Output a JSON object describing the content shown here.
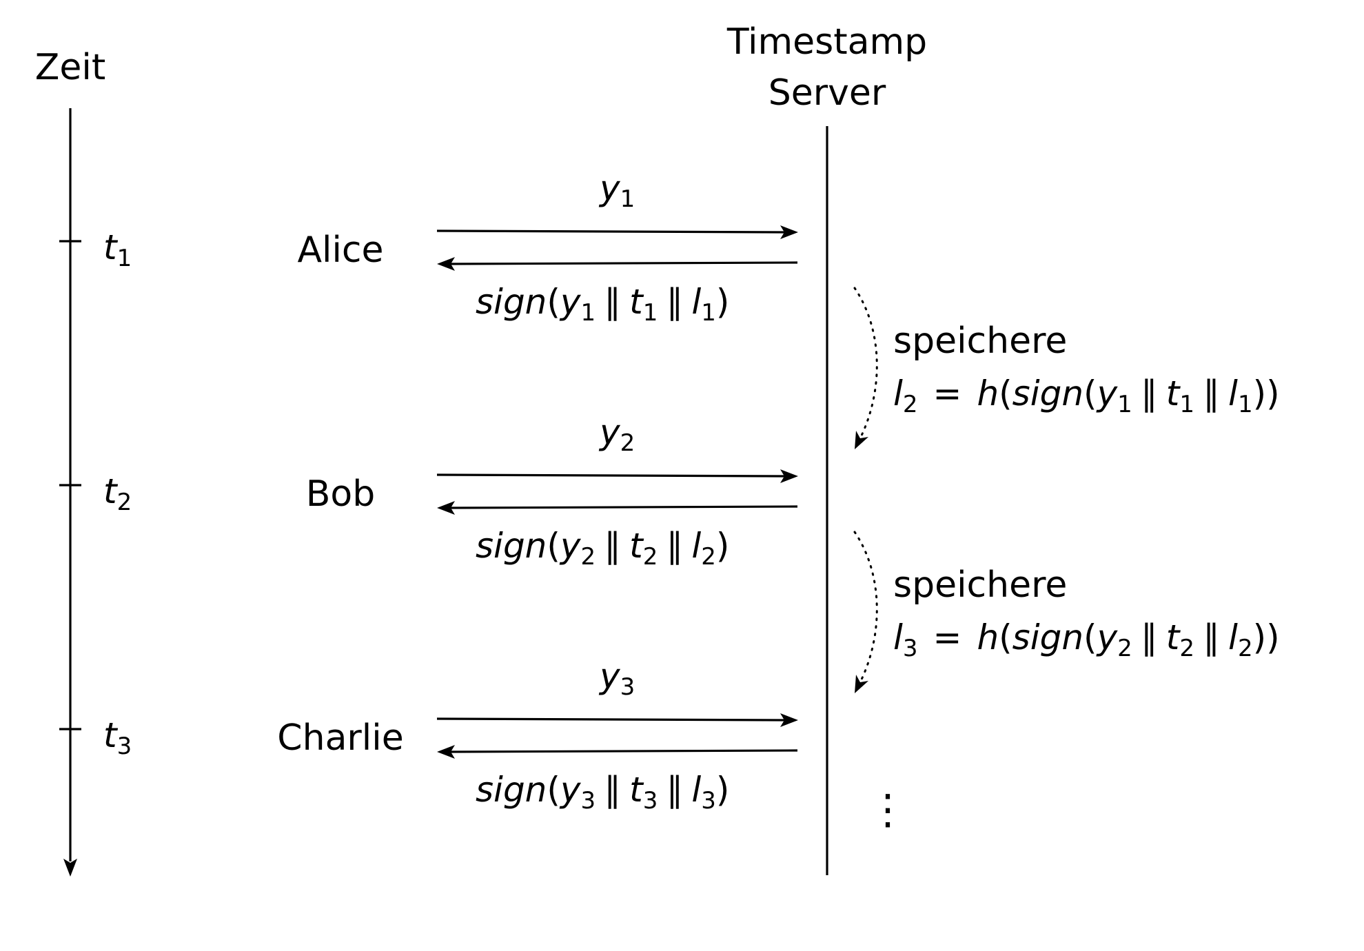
{
  "time_axis": {
    "label": "Zeit",
    "ticks": [
      {
        "var": "t",
        "sub": "1"
      },
      {
        "var": "t",
        "sub": "2"
      },
      {
        "var": "t",
        "sub": "3"
      }
    ]
  },
  "server": {
    "line1": "Timestamp",
    "line2": "Server"
  },
  "exchanges": [
    {
      "party": "Alice",
      "request": {
        "var": "y",
        "sub": "1"
      },
      "response": {
        "fn": "sign",
        "y": "y",
        "t": "t",
        "l": "l",
        "sub": "1",
        "sep": "∥"
      }
    },
    {
      "party": "Bob",
      "request": {
        "var": "y",
        "sub": "2"
      },
      "response": {
        "fn": "sign",
        "y": "y",
        "t": "t",
        "l": "l",
        "sub": "2",
        "sep": "∥"
      }
    },
    {
      "party": "Charlie",
      "request": {
        "var": "y",
        "sub": "3"
      },
      "response": {
        "fn": "sign",
        "y": "y",
        "t": "t",
        "l": "l",
        "sub": "3",
        "sep": "∥"
      }
    }
  ],
  "stores": [
    {
      "verb": "speichere",
      "l": "l",
      "l_sub": "2",
      "eq": "=",
      "h": "h",
      "fn": "sign",
      "y": "y",
      "t": "t",
      "prev_l": "l",
      "sub": "1",
      "sep": "∥"
    },
    {
      "verb": "speichere",
      "l": "l",
      "l_sub": "3",
      "eq": "=",
      "h": "h",
      "fn": "sign",
      "y": "y",
      "t": "t",
      "prev_l": "l",
      "sub": "2",
      "sep": "∥"
    }
  ],
  "continuation": "⋮"
}
